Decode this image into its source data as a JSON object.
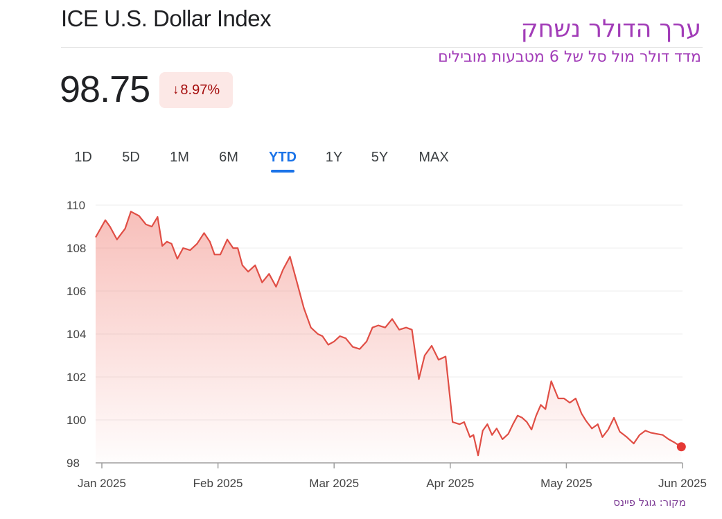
{
  "header": {
    "title": "ICE U.S. Dollar Index",
    "heb_title": "ערך הדולר נשחק",
    "heb_subtitle": "מדד דולר מול סל של  6 מטבעות מובילים"
  },
  "quote": {
    "price": "98.75",
    "change_arrow": "↓",
    "change": "8.97%"
  },
  "tabs": [
    {
      "label": "1D",
      "active": false
    },
    {
      "label": "5D",
      "active": false
    },
    {
      "label": "1M",
      "active": false
    },
    {
      "label": "6M",
      "active": false
    },
    {
      "label": "YTD",
      "active": true
    },
    {
      "label": "1Y",
      "active": false
    },
    {
      "label": "5Y",
      "active": false
    },
    {
      "label": "MAX",
      "active": false
    }
  ],
  "colors": {
    "line": "#e04e45",
    "fill_top": "#f28b82",
    "accent": "#1a73e8",
    "annotation": "#a23cb8"
  },
  "source_note": "מקור: גוגל פיינס",
  "chart_data": {
    "type": "area",
    "title": "ICE U.S. Dollar Index",
    "ylim": [
      98,
      110
    ],
    "yticks": [
      98,
      100,
      102,
      104,
      106,
      108,
      110
    ],
    "xticks": [
      {
        "label": "Jan 2025",
        "x": 0
      },
      {
        "label": "Feb 2025",
        "x": 1
      },
      {
        "label": "Mar 2025",
        "x": 2
      },
      {
        "label": "Apr 2025",
        "x": 3
      },
      {
        "label": "May 2025",
        "x": 4
      },
      {
        "label": "Jun 2025",
        "x": 5
      }
    ],
    "x_unit": "months since Jan 2025",
    "grid": true,
    "series": [
      {
        "name": "ICE U.S. Dollar Index",
        "x": [
          0,
          0.03,
          0.07,
          0.13,
          0.2,
          0.25,
          0.32,
          0.38,
          0.43,
          0.48,
          0.52,
          0.56,
          0.6,
          0.65,
          0.7,
          0.76,
          0.82,
          0.88,
          0.93,
          0.97,
          1.02,
          1.08,
          1.13,
          1.17,
          1.21,
          1.26,
          1.32,
          1.38,
          1.44,
          1.5,
          1.56,
          1.62,
          1.68,
          1.74,
          1.8,
          1.86,
          1.9,
          1.95,
          2.0,
          2.05,
          2.1,
          2.16,
          2.22,
          2.28,
          2.33,
          2.38,
          2.44,
          2.5,
          2.56,
          2.62,
          2.67,
          2.73,
          2.78,
          2.84,
          2.9,
          2.96,
          3.02,
          3.08,
          3.12,
          3.17,
          3.2,
          3.24,
          3.28,
          3.32,
          3.36,
          3.4,
          3.45,
          3.5,
          3.54,
          3.58,
          3.62,
          3.66,
          3.7,
          3.74,
          3.78,
          3.82,
          3.87,
          3.93,
          3.98,
          4.03,
          4.08,
          4.13,
          4.17,
          4.22,
          4.27,
          4.31,
          4.36,
          4.41,
          4.46,
          4.52,
          4.58,
          4.63,
          4.68,
          4.73,
          4.78,
          4.83,
          4.88,
          4.93,
          4.96,
          4.99
        ],
        "values": [
          108.5,
          109.3,
          109.0,
          108.4,
          108.9,
          109.7,
          109.5,
          109.1,
          109.0,
          109.45,
          108.1,
          108.3,
          108.2,
          107.5,
          108.0,
          107.9,
          108.2,
          108.7,
          108.3,
          107.7,
          107.7,
          108.4,
          108.0,
          108.0,
          107.2,
          106.9,
          107.2,
          106.4,
          106.8,
          106.2,
          107.0,
          107.6,
          106.4,
          105.2,
          104.3,
          104.0,
          103.9,
          103.5,
          103.65,
          103.9,
          103.8,
          103.4,
          103.3,
          103.65,
          104.3,
          104.4,
          104.3,
          104.7,
          104.2,
          104.3,
          104.2,
          101.9,
          103.0,
          103.45,
          102.8,
          102.95,
          99.9,
          99.8,
          99.9,
          99.2,
          99.3,
          98.35,
          99.5,
          99.8,
          99.3,
          99.6,
          99.1,
          99.35,
          99.8,
          100.2,
          100.1,
          99.9,
          99.55,
          100.2,
          100.7,
          100.5,
          101.8,
          101.0,
          101.0,
          100.8,
          101.0,
          100.3,
          99.95,
          99.6,
          99.8,
          99.2,
          99.55,
          100.1,
          99.45,
          99.2,
          98.9,
          99.3,
          99.5,
          99.4,
          99.35,
          99.3,
          99.1,
          98.95,
          98.85,
          98.75
        ]
      }
    ]
  }
}
